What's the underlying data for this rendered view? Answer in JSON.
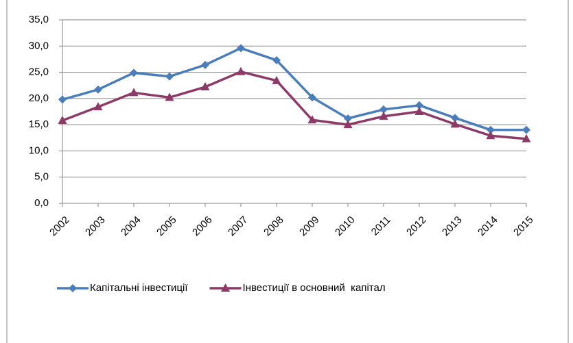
{
  "chart_data": {
    "type": "line",
    "categories": [
      "2002",
      "2003",
      "2004",
      "2005",
      "2006",
      "2007",
      "2008",
      "2009",
      "2010",
      "2011",
      "2012",
      "2013",
      "2014",
      "2015"
    ],
    "series": [
      {
        "name": "Капітальні інвестиції",
        "color": "#4a7ebb",
        "marker": "diamond",
        "values": [
          19.8,
          21.7,
          24.9,
          24.2,
          26.4,
          29.6,
          27.3,
          20.2,
          16.2,
          17.9,
          18.7,
          16.3,
          14.0,
          14.0
        ]
      },
      {
        "name": "Інвестиції в основний  капітал",
        "color": "#8e3a68",
        "marker": "triangle",
        "values": [
          15.8,
          18.4,
          21.1,
          20.2,
          22.2,
          25.1,
          23.4,
          15.9,
          15.0,
          16.6,
          17.5,
          15.1,
          12.9,
          12.3
        ]
      }
    ],
    "ylim": [
      0,
      35
    ],
    "yticks": [
      {
        "value": 0,
        "label": "0,0"
      },
      {
        "value": 5,
        "label": "5,0"
      },
      {
        "value": 10,
        "label": "10,0"
      },
      {
        "value": 15,
        "label": "15,0"
      },
      {
        "value": 20,
        "label": "20,0"
      },
      {
        "value": 25,
        "label": "25,0"
      },
      {
        "value": 30,
        "label": "30,0"
      },
      {
        "value": 35,
        "label": "35,0"
      }
    ],
    "grid": true,
    "legend": "bottom"
  }
}
